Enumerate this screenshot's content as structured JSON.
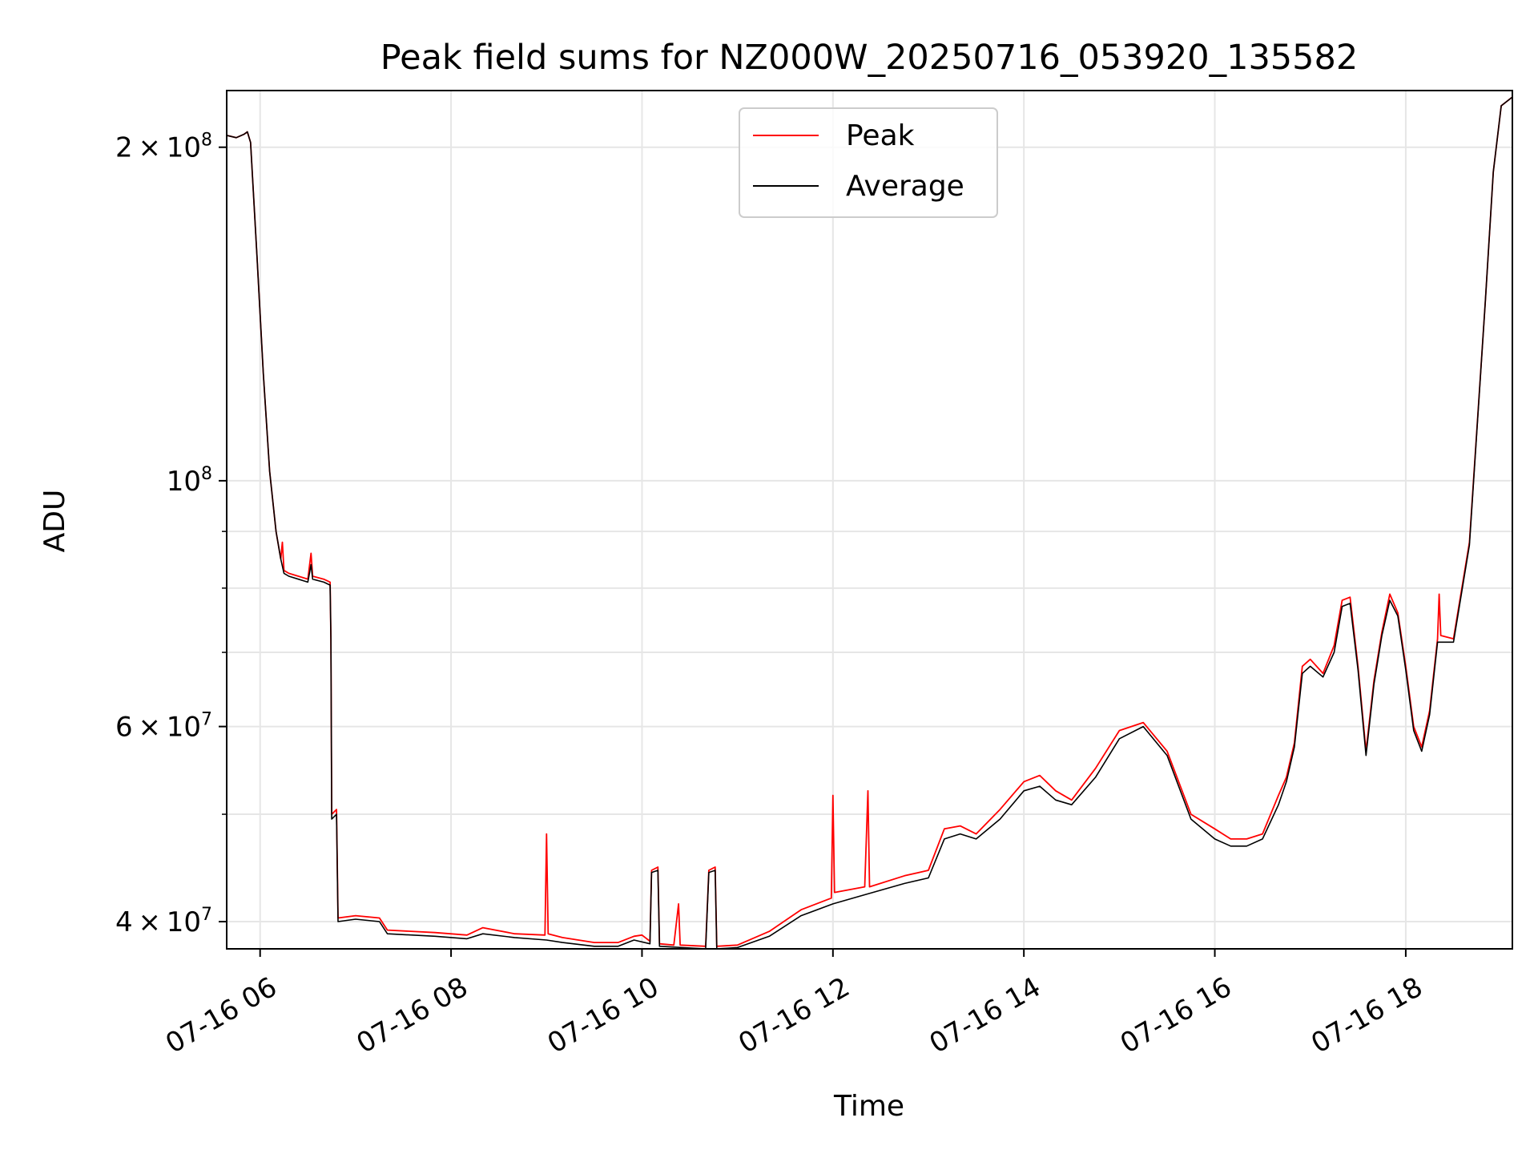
{
  "chart_data": {
    "type": "line",
    "title": "Peak field sums for NZ000W_20250716_053920_135582",
    "xlabel": "Time",
    "ylabel": "ADU",
    "xscale": "time",
    "yscale": "log",
    "xlim": [
      "2025-07-16T05:39:00",
      "2025-07-16T19:07:00"
    ],
    "ylim": [
      37800000,
      225000000
    ],
    "grid": true,
    "legend_position": "top-center",
    "x_ticks": [
      {
        "t": "2025-07-16T06:00",
        "label": "07-16 06"
      },
      {
        "t": "2025-07-16T08:00",
        "label": "07-16 08"
      },
      {
        "t": "2025-07-16T10:00",
        "label": "07-16 10"
      },
      {
        "t": "2025-07-16T12:00",
        "label": "07-16 12"
      },
      {
        "t": "2025-07-16T14:00",
        "label": "07-16 14"
      },
      {
        "t": "2025-07-16T16:00",
        "label": "07-16 16"
      },
      {
        "t": "2025-07-16T18:00",
        "label": "07-16 18"
      }
    ],
    "y_ticks": [
      {
        "v": 40000000,
        "mant": "4",
        "exp": "7"
      },
      {
        "v": 60000000,
        "mant": "6",
        "exp": "7"
      },
      {
        "v": 100000000,
        "mant": "",
        "exp": "8"
      },
      {
        "v": 200000000,
        "mant": "2",
        "exp": "8"
      }
    ],
    "y_minor": [
      50000000,
      70000000,
      80000000,
      90000000
    ],
    "series": [
      {
        "name": "Peak",
        "color": "#ff0000",
        "points": [
          [
            "05:39",
            205000000
          ],
          [
            "05:45",
            204000000
          ],
          [
            "05:50",
            205500000
          ],
          [
            "05:52",
            206500000
          ],
          [
            "05:54",
            202000000
          ],
          [
            "05:58",
            160000000
          ],
          [
            "06:02",
            125000000
          ],
          [
            "06:06",
            102000000
          ],
          [
            "06:10",
            90000000
          ],
          [
            "06:13",
            85000000
          ],
          [
            "06:14",
            88000000
          ],
          [
            "06:15",
            83000000
          ],
          [
            "06:18",
            82500000
          ],
          [
            "06:24",
            82000000
          ],
          [
            "06:30",
            81500000
          ],
          [
            "06:32",
            86000000
          ],
          [
            "06:33",
            82000000
          ],
          [
            "06:40",
            81500000
          ],
          [
            "06:44",
            81000000
          ],
          [
            "06:44.5",
            72000000
          ],
          [
            "06:45",
            50000000
          ],
          [
            "06:48",
            50500000
          ],
          [
            "06:49",
            40300000
          ],
          [
            "07:00",
            40500000
          ],
          [
            "07:15",
            40300000
          ],
          [
            "07:20",
            39300000
          ],
          [
            "07:50",
            39100000
          ],
          [
            "08:10",
            38900000
          ],
          [
            "08:20",
            39500000
          ],
          [
            "08:40",
            39000000
          ],
          [
            "08:59",
            38900000
          ],
          [
            "09:00",
            48000000
          ],
          [
            "09:01",
            39000000
          ],
          [
            "09:10",
            38700000
          ],
          [
            "09:30",
            38300000
          ],
          [
            "09:45",
            38300000
          ],
          [
            "09:55",
            38800000
          ],
          [
            "10:00",
            38900000
          ],
          [
            "10:05",
            38400000
          ],
          [
            "10:06",
            44500000
          ],
          [
            "10:10",
            44800000
          ],
          [
            "10:11",
            38200000
          ],
          [
            "10:20",
            38100000
          ],
          [
            "10:23",
            41500000
          ],
          [
            "10:24",
            38100000
          ],
          [
            "10:40",
            38000000
          ],
          [
            "10:42",
            44500000
          ],
          [
            "10:46",
            44800000
          ],
          [
            "10:47",
            38000000
          ],
          [
            "11:00",
            38100000
          ],
          [
            "11:20",
            39200000
          ],
          [
            "11:40",
            41000000
          ],
          [
            "11:59",
            42000000
          ],
          [
            "12:00",
            52000000
          ],
          [
            "12:01",
            42500000
          ],
          [
            "12:20",
            43000000
          ],
          [
            "12:22",
            52500000
          ],
          [
            "12:23",
            43000000
          ],
          [
            "12:45",
            44000000
          ],
          [
            "13:00",
            44500000
          ],
          [
            "13:10",
            48500000
          ],
          [
            "13:20",
            48800000
          ],
          [
            "13:30",
            48000000
          ],
          [
            "13:45",
            50500000
          ],
          [
            "14:00",
            53500000
          ],
          [
            "14:10",
            54200000
          ],
          [
            "14:20",
            52500000
          ],
          [
            "14:30",
            51500000
          ],
          [
            "14:45",
            55000000
          ],
          [
            "15:00",
            59500000
          ],
          [
            "15:15",
            60500000
          ],
          [
            "15:30",
            57000000
          ],
          [
            "15:45",
            50000000
          ],
          [
            "16:00",
            48500000
          ],
          [
            "16:10",
            47500000
          ],
          [
            "16:20",
            47500000
          ],
          [
            "16:30",
            48000000
          ],
          [
            "16:40",
            52000000
          ],
          [
            "16:45",
            54000000
          ],
          [
            "16:50",
            58000000
          ],
          [
            "16:55",
            68000000
          ],
          [
            "17:00",
            69000000
          ],
          [
            "17:08",
            67000000
          ],
          [
            "17:15",
            71000000
          ],
          [
            "17:20",
            78000000
          ],
          [
            "17:25",
            78500000
          ],
          [
            "17:30",
            68000000
          ],
          [
            "17:35",
            57000000
          ],
          [
            "17:40",
            66000000
          ],
          [
            "17:45",
            73000000
          ],
          [
            "17:50",
            79000000
          ],
          [
            "17:55",
            76000000
          ],
          [
            "18:00",
            68000000
          ],
          [
            "18:05",
            60000000
          ],
          [
            "18:10",
            57500000
          ],
          [
            "18:15",
            62000000
          ],
          [
            "18:20",
            72000000
          ],
          [
            "18:21",
            79000000
          ],
          [
            "18:22",
            72500000
          ],
          [
            "18:30",
            72000000
          ],
          [
            "18:40",
            88000000
          ],
          [
            "18:50",
            145000000
          ],
          [
            "18:55",
            190000000
          ],
          [
            "19:00",
            218000000
          ],
          [
            "19:07",
            222000000
          ]
        ]
      },
      {
        "name": "Average",
        "color": "#000000",
        "points": [
          [
            "05:39",
            205000000
          ],
          [
            "05:45",
            204000000
          ],
          [
            "05:50",
            205500000
          ],
          [
            "05:52",
            206500000
          ],
          [
            "05:54",
            202000000
          ],
          [
            "05:58",
            160000000
          ],
          [
            "06:02",
            125000000
          ],
          [
            "06:06",
            102000000
          ],
          [
            "06:10",
            90000000
          ],
          [
            "06:13",
            85000000
          ],
          [
            "06:15",
            82500000
          ],
          [
            "06:18",
            82000000
          ],
          [
            "06:24",
            81500000
          ],
          [
            "06:30",
            81000000
          ],
          [
            "06:32",
            84000000
          ],
          [
            "06:33",
            81500000
          ],
          [
            "06:40",
            81000000
          ],
          [
            "06:44",
            80500000
          ],
          [
            "06:44.5",
            72000000
          ],
          [
            "06:45",
            49500000
          ],
          [
            "06:48",
            50000000
          ],
          [
            "06:49",
            40000000
          ],
          [
            "07:00",
            40200000
          ],
          [
            "07:15",
            40000000
          ],
          [
            "07:20",
            39000000
          ],
          [
            "07:50",
            38800000
          ],
          [
            "08:10",
            38600000
          ],
          [
            "08:20",
            39000000
          ],
          [
            "08:40",
            38700000
          ],
          [
            "09:00",
            38500000
          ],
          [
            "09:10",
            38300000
          ],
          [
            "09:30",
            38000000
          ],
          [
            "09:45",
            38000000
          ],
          [
            "09:55",
            38500000
          ],
          [
            "10:05",
            38200000
          ],
          [
            "10:06",
            44300000
          ],
          [
            "10:10",
            44500000
          ],
          [
            "10:11",
            38000000
          ],
          [
            "10:40",
            37800000
          ],
          [
            "10:42",
            44300000
          ],
          [
            "10:46",
            44500000
          ],
          [
            "10:47",
            37800000
          ],
          [
            "11:00",
            37900000
          ],
          [
            "11:20",
            38800000
          ],
          [
            "11:40",
            40500000
          ],
          [
            "12:00",
            41500000
          ],
          [
            "12:20",
            42300000
          ],
          [
            "12:45",
            43300000
          ],
          [
            "13:00",
            43800000
          ],
          [
            "13:10",
            47500000
          ],
          [
            "13:20",
            48000000
          ],
          [
            "13:30",
            47500000
          ],
          [
            "13:45",
            49500000
          ],
          [
            "14:00",
            52500000
          ],
          [
            "14:10",
            53000000
          ],
          [
            "14:20",
            51500000
          ],
          [
            "14:30",
            51000000
          ],
          [
            "14:45",
            54000000
          ],
          [
            "15:00",
            58500000
          ],
          [
            "15:15",
            60000000
          ],
          [
            "15:30",
            56500000
          ],
          [
            "15:45",
            49500000
          ],
          [
            "16:00",
            47500000
          ],
          [
            "16:10",
            46800000
          ],
          [
            "16:20",
            46800000
          ],
          [
            "16:30",
            47500000
          ],
          [
            "16:40",
            51000000
          ],
          [
            "16:45",
            53500000
          ],
          [
            "16:50",
            57500000
          ],
          [
            "16:55",
            67000000
          ],
          [
            "17:00",
            68000000
          ],
          [
            "17:08",
            66500000
          ],
          [
            "17:15",
            70000000
          ],
          [
            "17:20",
            77000000
          ],
          [
            "17:25",
            77500000
          ],
          [
            "17:30",
            67500000
          ],
          [
            "17:35",
            56500000
          ],
          [
            "17:40",
            65500000
          ],
          [
            "17:45",
            72500000
          ],
          [
            "17:50",
            78000000
          ],
          [
            "17:55",
            75500000
          ],
          [
            "18:00",
            67500000
          ],
          [
            "18:05",
            59500000
          ],
          [
            "18:10",
            57000000
          ],
          [
            "18:15",
            61500000
          ],
          [
            "18:20",
            71500000
          ],
          [
            "18:30",
            71500000
          ],
          [
            "18:40",
            87500000
          ],
          [
            "18:50",
            145000000
          ],
          [
            "18:55",
            190000000
          ],
          [
            "19:00",
            218000000
          ],
          [
            "19:07",
            222000000
          ]
        ]
      }
    ]
  }
}
